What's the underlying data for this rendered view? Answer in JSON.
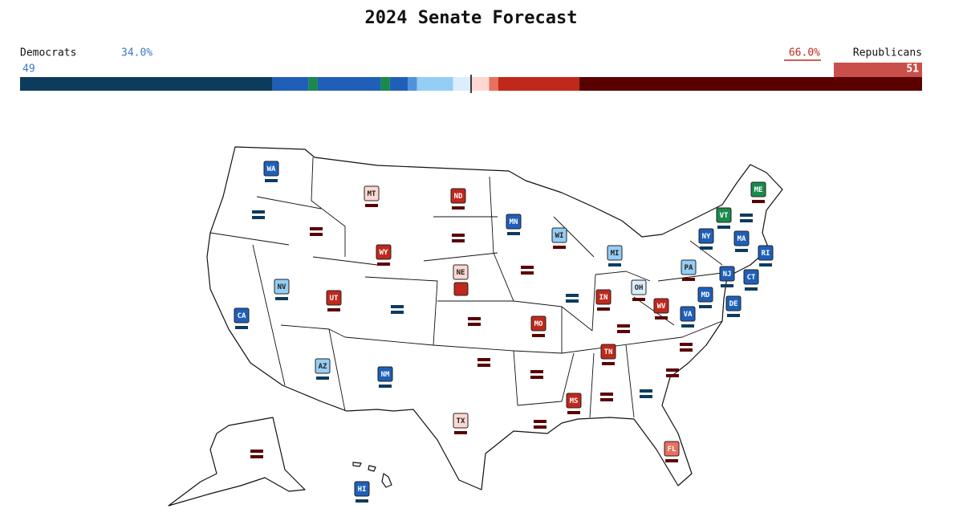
{
  "header": {
    "title": "2024 Senate Forecast"
  },
  "summary": {
    "dem_label": "Democrats",
    "dem_pct": "34.0%",
    "dem_seats": "49",
    "rep_pct": "66.0%",
    "rep_label": "Republicans",
    "rep_seats": "51"
  },
  "seat_bar": {
    "segments": [
      {
        "color": "#0d3b5e",
        "seats": 28
      },
      {
        "color": "#1f5fb8",
        "seats": 4
      },
      {
        "color": "#1a8a4a",
        "seats": 1
      },
      {
        "color": "#1f5fb8",
        "seats": 7
      },
      {
        "color": "#1a8a4a",
        "seats": 1
      },
      {
        "color": "#1f5fb8",
        "seats": 2
      },
      {
        "color": "#4f93dc",
        "seats": 1
      },
      {
        "color": "#95cdf5",
        "seats": 4
      },
      {
        "color": "#dbeeff",
        "seats": 2
      },
      {
        "color": "#fdd8d2",
        "seats": 2
      },
      {
        "color": "#e8705e",
        "seats": 1
      },
      {
        "color": "#c0281c",
        "seats": 9
      },
      {
        "color": "#5a0000",
        "seats": 38
      }
    ]
  },
  "states": [
    {
      "label": "WA",
      "color": "#1f5fb8",
      "seats": [
        "#0d3b5e"
      ]
    },
    {
      "label": "MT",
      "color": "#fdd8d2",
      "seats": [
        "#5a0000"
      ]
    },
    {
      "label": "ND",
      "color": "#c0281c",
      "seats": [
        "#5a0000"
      ]
    },
    {
      "label": "ME",
      "color": "#1a8a4a",
      "seats": [
        "#5a0000"
      ]
    },
    {
      "label": "VT",
      "color": "#1a8a4a",
      "seats": [
        "#0d3b5e"
      ]
    },
    {
      "label": "MN",
      "color": "#1f5fb8",
      "seats": [
        "#0d3b5e"
      ]
    },
    {
      "label": "WI",
      "color": "#95cdf5",
      "seats": [
        "#5a0000"
      ]
    },
    {
      "label": "NY",
      "color": "#1f5fb8",
      "seats": [
        "#0d3b5e"
      ]
    },
    {
      "label": "MA",
      "color": "#1f5fb8",
      "seats": [
        "#0d3b5e"
      ]
    },
    {
      "label": "RI",
      "color": "#1f5fb8",
      "seats": [
        "#0d3b5e"
      ]
    },
    {
      "label": "WY",
      "color": "#c0281c",
      "seats": [
        "#5a0000"
      ]
    },
    {
      "label": "MI",
      "color": "#95cdf5",
      "seats": [
        "#0d3b5e"
      ]
    },
    {
      "label": "PA",
      "color": "#95cdf5",
      "seats": [
        "#5a0000"
      ]
    },
    {
      "label": "NE",
      "color": "#fdd8d2",
      "seats": [
        "#c0281c"
      ],
      "seat_style": "box"
    },
    {
      "label": "NJ",
      "color": "#1f5fb8",
      "seats": [
        "#0d3b5e"
      ]
    },
    {
      "label": "CT",
      "color": "#1f5fb8",
      "seats": [
        "#0d3b5e"
      ]
    },
    {
      "label": "NV",
      "color": "#95cdf5",
      "seats": [
        "#0d3b5e"
      ]
    },
    {
      "label": "OH",
      "color": "#dbeeff",
      "seats": [
        "#5a0000"
      ]
    },
    {
      "label": "MD",
      "color": "#1f5fb8",
      "seats": [
        "#0d3b5e"
      ]
    },
    {
      "label": "UT",
      "color": "#c0281c",
      "seats": [
        "#5a0000"
      ]
    },
    {
      "label": "IN",
      "color": "#c0281c",
      "seats": [
        "#5a0000"
      ]
    },
    {
      "label": "DE",
      "color": "#1f5fb8",
      "seats": [
        "#0d3b5e"
      ]
    },
    {
      "label": "WV",
      "color": "#c0281c",
      "seats": [
        "#5a0000"
      ]
    },
    {
      "label": "CA",
      "color": "#1f5fb8",
      "seats": [
        "#0d3b5e"
      ]
    },
    {
      "label": "VA",
      "color": "#1f5fb8",
      "seats": [
        "#0d3b5e"
      ]
    },
    {
      "label": "MO",
      "color": "#c0281c",
      "seats": [
        "#5a0000"
      ]
    },
    {
      "label": "TN",
      "color": "#c0281c",
      "seats": [
        "#5a0000"
      ]
    },
    {
      "label": "AZ",
      "color": "#95cdf5",
      "seats": [
        "#0d3b5e"
      ]
    },
    {
      "label": "NM",
      "color": "#1f5fb8",
      "seats": [
        "#0d3b5e"
      ]
    },
    {
      "label": "MS",
      "color": "#c0281c",
      "seats": [
        "#5a0000"
      ]
    },
    {
      "label": "TX",
      "color": "#fdd8d2",
      "seats": [
        "#5a0000"
      ]
    },
    {
      "label": "FL",
      "color": "#e8705e",
      "seats": [
        "#5a0000"
      ]
    },
    {
      "label": "HI",
      "color": "#1f5fb8",
      "seats": [
        "#0d3b5e"
      ]
    },
    {
      "seats": [
        "#0d3b5e",
        "#0d3b5e"
      ]
    },
    {
      "seats": [
        "#5a0000",
        "#5a0000"
      ]
    },
    {
      "seats": [
        "#5a0000",
        "#5a0000"
      ]
    },
    {
      "seats": [
        "#0d3b5e",
        "#0d3b5e"
      ]
    },
    {
      "seats": [
        "#5a0000",
        "#5a0000"
      ]
    },
    {
      "seats": [
        "#5a0000",
        "#5a0000"
      ]
    },
    {
      "seats": [
        "#0d3b5e",
        "#0d3b5e"
      ]
    },
    {
      "seats": [
        "#5a0000",
        "#5a0000"
      ]
    },
    {
      "seats": [
        "#5a0000",
        "#5a0000"
      ]
    },
    {
      "seats": [
        "#5a0000",
        "#5a0000"
      ]
    },
    {
      "seats": [
        "#5a0000",
        "#5a0000"
      ]
    },
    {
      "seats": [
        "#5a0000",
        "#5a0000"
      ]
    },
    {
      "seats": [
        "#5a0000",
        "#5a0000"
      ]
    },
    {
      "seats": [
        "#0d3b5e",
        "#0d3b5e"
      ]
    },
    {
      "seats": [
        "#5a0000",
        "#5a0000"
      ]
    },
    {
      "seats": [
        "#5a0000",
        "#5a0000"
      ]
    },
    {
      "seats": [
        "#0d3b5e",
        "#0d3b5e"
      ]
    }
  ]
}
